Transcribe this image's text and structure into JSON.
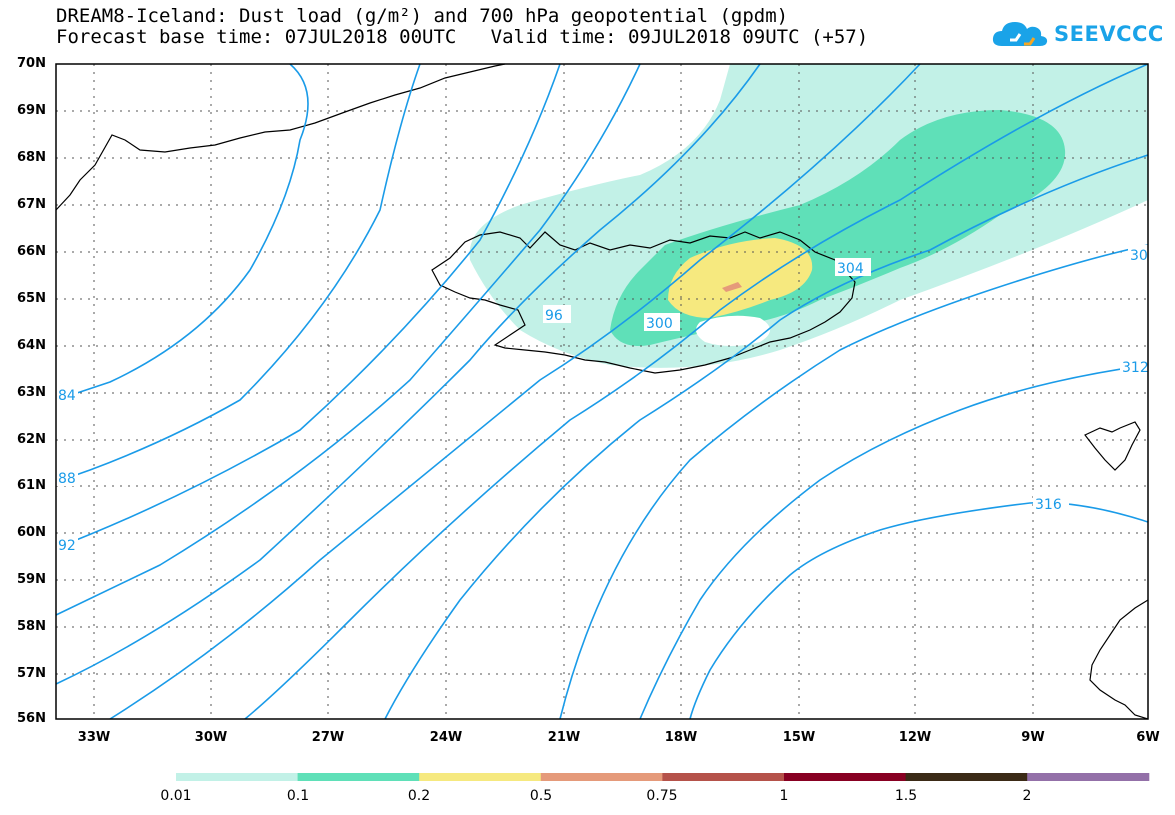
{
  "header": {
    "title_line1": "DREAM8-Iceland: Dust load (g/m²) and 700 hPa geopotential (gpdm)",
    "title_line2": "Forecast base time: 07JUL2018 00UTC   Valid time: 09JUL2018 09UTC (+57)"
  },
  "logo": {
    "text": "SEEVCCC",
    "color": "#1aa3e8"
  },
  "map": {
    "lat_labels": [
      "70N",
      "69N",
      "68N",
      "67N",
      "66N",
      "65N",
      "64N",
      "63N",
      "62N",
      "61N",
      "60N",
      "59N",
      "58N",
      "57N",
      "56N"
    ],
    "lon_labels": [
      "33W",
      "30W",
      "27W",
      "24W",
      "21W",
      "18W",
      "15W",
      "12W",
      "9W",
      "6W"
    ],
    "contour_color": "#1a9be8",
    "contour_labels": [
      "84",
      "88",
      "92",
      "96",
      "300",
      "304",
      "30",
      "312",
      "316"
    ]
  },
  "colorbar": {
    "labels": [
      "0.01",
      "0.1",
      "0.2",
      "0.5",
      "0.75",
      "1",
      "1.5",
      "2"
    ],
    "colors": [
      "#c2f1e7",
      "#5fe0b8",
      "#f6e97f",
      "#e59a7a",
      "#b5524a",
      "#880022",
      "#3b2a16",
      "#9370a8"
    ]
  }
}
